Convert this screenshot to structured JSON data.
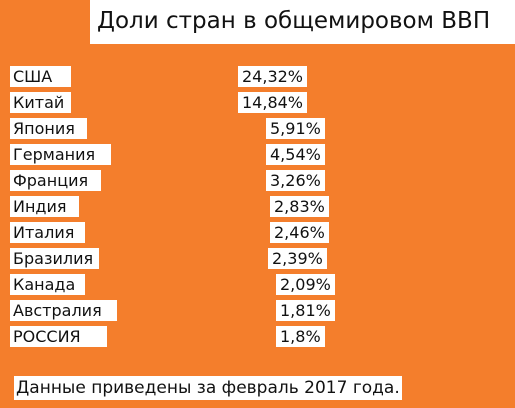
{
  "chart_data": {
    "type": "table",
    "title": "Доли стран в общемировом ВВП",
    "columns": [
      "",
      ""
    ],
    "categories": [
      "США",
      "Китай",
      "Япония",
      "Германия",
      "Франция",
      "Индия",
      "Италия",
      "Бразилия",
      "Канада",
      "Австралия",
      "РОССИЯ"
    ],
    "value_labels": [
      "24,32%",
      "14,84%",
      "5,91%",
      "4,54%",
      "3,26%",
      "2,83%",
      "2,46%",
      "2,39%",
      "2,09%",
      "1,81%",
      "1,8%"
    ],
    "values": [
      24.32,
      14.84,
      5.91,
      4.54,
      3.26,
      2.83,
      2.46,
      2.39,
      2.09,
      1.81,
      1.8
    ],
    "note": "Данные приведены за февраль 2017 года."
  },
  "colors": {
    "background": "#f47e2c",
    "panel": "#ffffff",
    "text": "#111111"
  }
}
